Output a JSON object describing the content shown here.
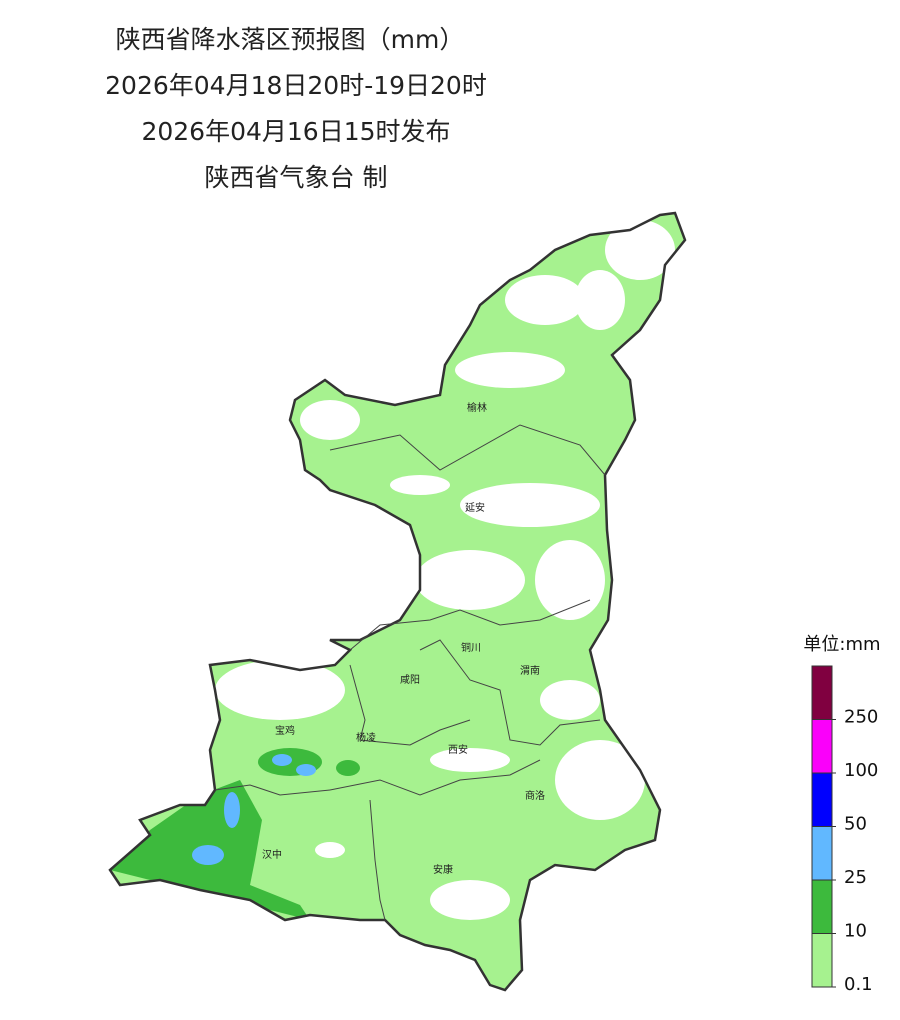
{
  "header": {
    "title": "陕西省降水落区预报图（mm）",
    "period": "2026年04月18日20时-19日20时",
    "issued": "2026年04月16日15时发布",
    "issuer": "陕西省气象台 制"
  },
  "cities": [
    "榆林",
    "延安",
    "铜川",
    "渭南",
    "咸阳",
    "宝鸡",
    "杨凌",
    "西安",
    "商洛",
    "汉中",
    "安康"
  ],
  "legend": {
    "unit": "单位:mm",
    "ticks": [
      0.1,
      10,
      25,
      50,
      100,
      250
    ],
    "colors": [
      "#a6f28f",
      "#3dba3d",
      "#61b8ff",
      "#0000fe",
      "#fa00fa",
      "#800040"
    ]
  }
}
